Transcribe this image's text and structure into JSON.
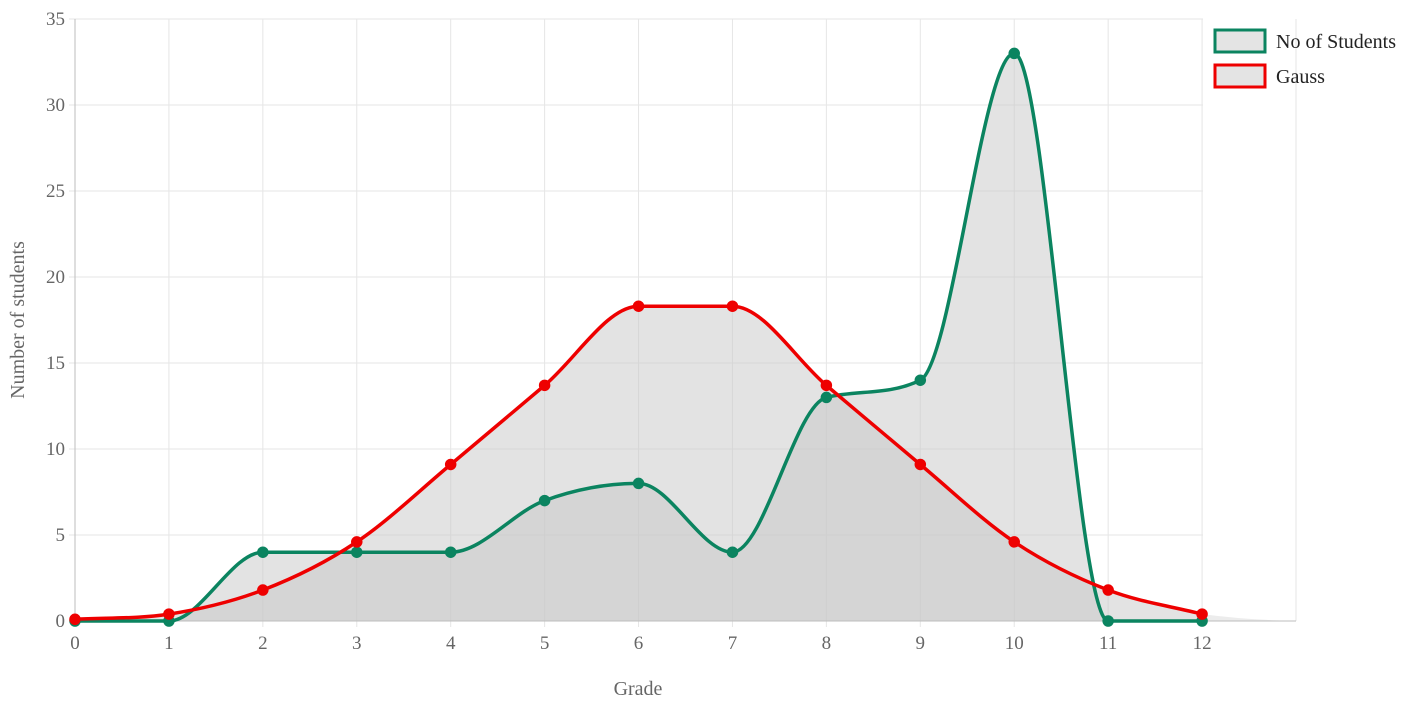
{
  "chart_data": {
    "type": "line",
    "title": "",
    "xlabel": "Grade",
    "ylabel": "Number of students",
    "x": [
      0,
      1,
      2,
      3,
      4,
      5,
      6,
      7,
      8,
      9,
      10,
      11,
      12
    ],
    "xlim": [
      0,
      13
    ],
    "ylim": [
      0,
      35
    ],
    "x_ticks": [
      "0",
      "1",
      "2",
      "3",
      "4",
      "5",
      "6",
      "7",
      "8",
      "9",
      "10",
      "11",
      "12"
    ],
    "y_ticks": [
      "0",
      "5",
      "10",
      "15",
      "20",
      "25",
      "30",
      "35"
    ],
    "grid": true,
    "legend_position": "top-right",
    "series": [
      {
        "name": "No of Students",
        "color": "#0b8460",
        "fill": "rgba(200,200,200,0.5)",
        "values": [
          0,
          0,
          4,
          4,
          4,
          7,
          8,
          4,
          13,
          14,
          33,
          0,
          0
        ]
      },
      {
        "name": "Gauss",
        "color": "#ee0000",
        "fill": "rgba(200,200,200,0.5)",
        "values": [
          0.1,
          0.4,
          1.8,
          4.6,
          9.1,
          13.7,
          18.3,
          18.3,
          13.7,
          9.1,
          4.6,
          1.8,
          0.4
        ]
      }
    ]
  }
}
